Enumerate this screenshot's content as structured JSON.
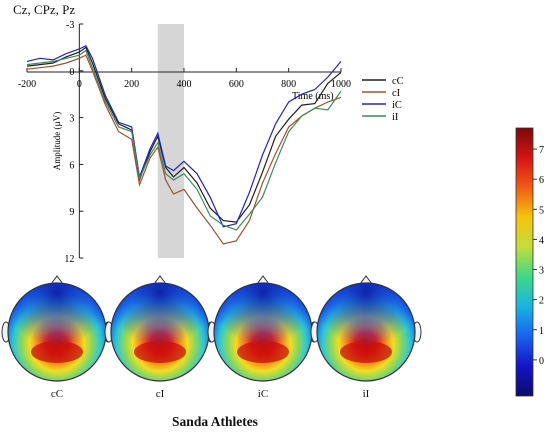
{
  "figure": {
    "electrode_title": "Cz, CPz, Pz",
    "group_title": "Sanda Athletes"
  },
  "chart_data": {
    "type": "line",
    "title": "Cz, CPz, Pz",
    "xlabel": "Time (ms)",
    "ylabel": "Amplitude (µV)",
    "xlim": [
      -200,
      1000
    ],
    "ylim": [
      -3,
      12
    ],
    "y_inverted": true,
    "x_ticks": [
      "-200",
      "0",
      "200",
      "400",
      "600",
      "800",
      "1000"
    ],
    "y_ticks": [
      "-3",
      "0",
      "3",
      "6",
      "9",
      "12"
    ],
    "highlight_window": [
      300,
      400
    ],
    "grid": false,
    "legend_position": "right",
    "x": [
      -200,
      -150,
      -100,
      -50,
      0,
      25,
      50,
      100,
      150,
      200,
      230,
      270,
      300,
      330,
      360,
      400,
      450,
      500,
      550,
      600,
      650,
      700,
      750,
      800,
      850,
      900,
      950,
      1000
    ],
    "series": [
      {
        "name": "cC",
        "color": "#1f1f1f",
        "values": [
          -0.3,
          -0.4,
          -0.5,
          -0.9,
          -1.2,
          -1.5,
          -0.5,
          1.8,
          3.4,
          3.8,
          7.0,
          5.2,
          4.2,
          6.2,
          6.8,
          6.2,
          7.2,
          8.8,
          9.6,
          9.7,
          8.6,
          6.5,
          4.2,
          3.1,
          2.2,
          2.1,
          0.8,
          0.1
        ]
      },
      {
        "name": "cI",
        "color": "#a0522d",
        "values": [
          -0.1,
          -0.2,
          -0.3,
          -0.5,
          -0.8,
          -1.0,
          0.0,
          2.2,
          3.9,
          4.4,
          7.3,
          5.6,
          4.9,
          7.0,
          7.9,
          7.6,
          8.8,
          9.9,
          11.1,
          10.9,
          9.6,
          7.2,
          5.3,
          3.6,
          2.9,
          2.4,
          2.0,
          1.7
        ]
      },
      {
        "name": "iC",
        "color": "#2323c8",
        "values": [
          -0.6,
          -0.8,
          -0.7,
          -1.1,
          -1.4,
          -1.6,
          -0.8,
          1.6,
          3.3,
          3.6,
          6.8,
          5.0,
          4.0,
          6.1,
          6.4,
          5.8,
          6.6,
          8.1,
          10.0,
          9.8,
          7.8,
          5.4,
          3.4,
          2.0,
          1.5,
          1.2,
          0.4,
          -0.6
        ]
      },
      {
        "name": "iI",
        "color": "#3a8c5a",
        "values": [
          -0.4,
          -0.5,
          -0.6,
          -0.8,
          -1.0,
          -1.3,
          -0.2,
          2.0,
          3.6,
          3.9,
          6.9,
          5.4,
          4.6,
          6.6,
          7.0,
          6.6,
          7.6,
          9.3,
          9.9,
          10.2,
          9.2,
          8.1,
          5.9,
          3.9,
          2.9,
          2.4,
          2.5,
          1.3
        ]
      }
    ]
  },
  "topomaps": [
    {
      "label": "cC"
    },
    {
      "label": "cI"
    },
    {
      "label": "iC"
    },
    {
      "label": "iI"
    }
  ],
  "colorbar": {
    "ticks": [
      "7",
      "6",
      "5",
      "4",
      "3",
      "2",
      "1",
      "0"
    ],
    "colors": [
      "#7a0a0a",
      "#d41414",
      "#f25a16",
      "#f7c40c",
      "#c4dc3a",
      "#3ed888",
      "#18b4e2",
      "#1862ee",
      "#1414c8",
      "#0a0a6e"
    ]
  }
}
